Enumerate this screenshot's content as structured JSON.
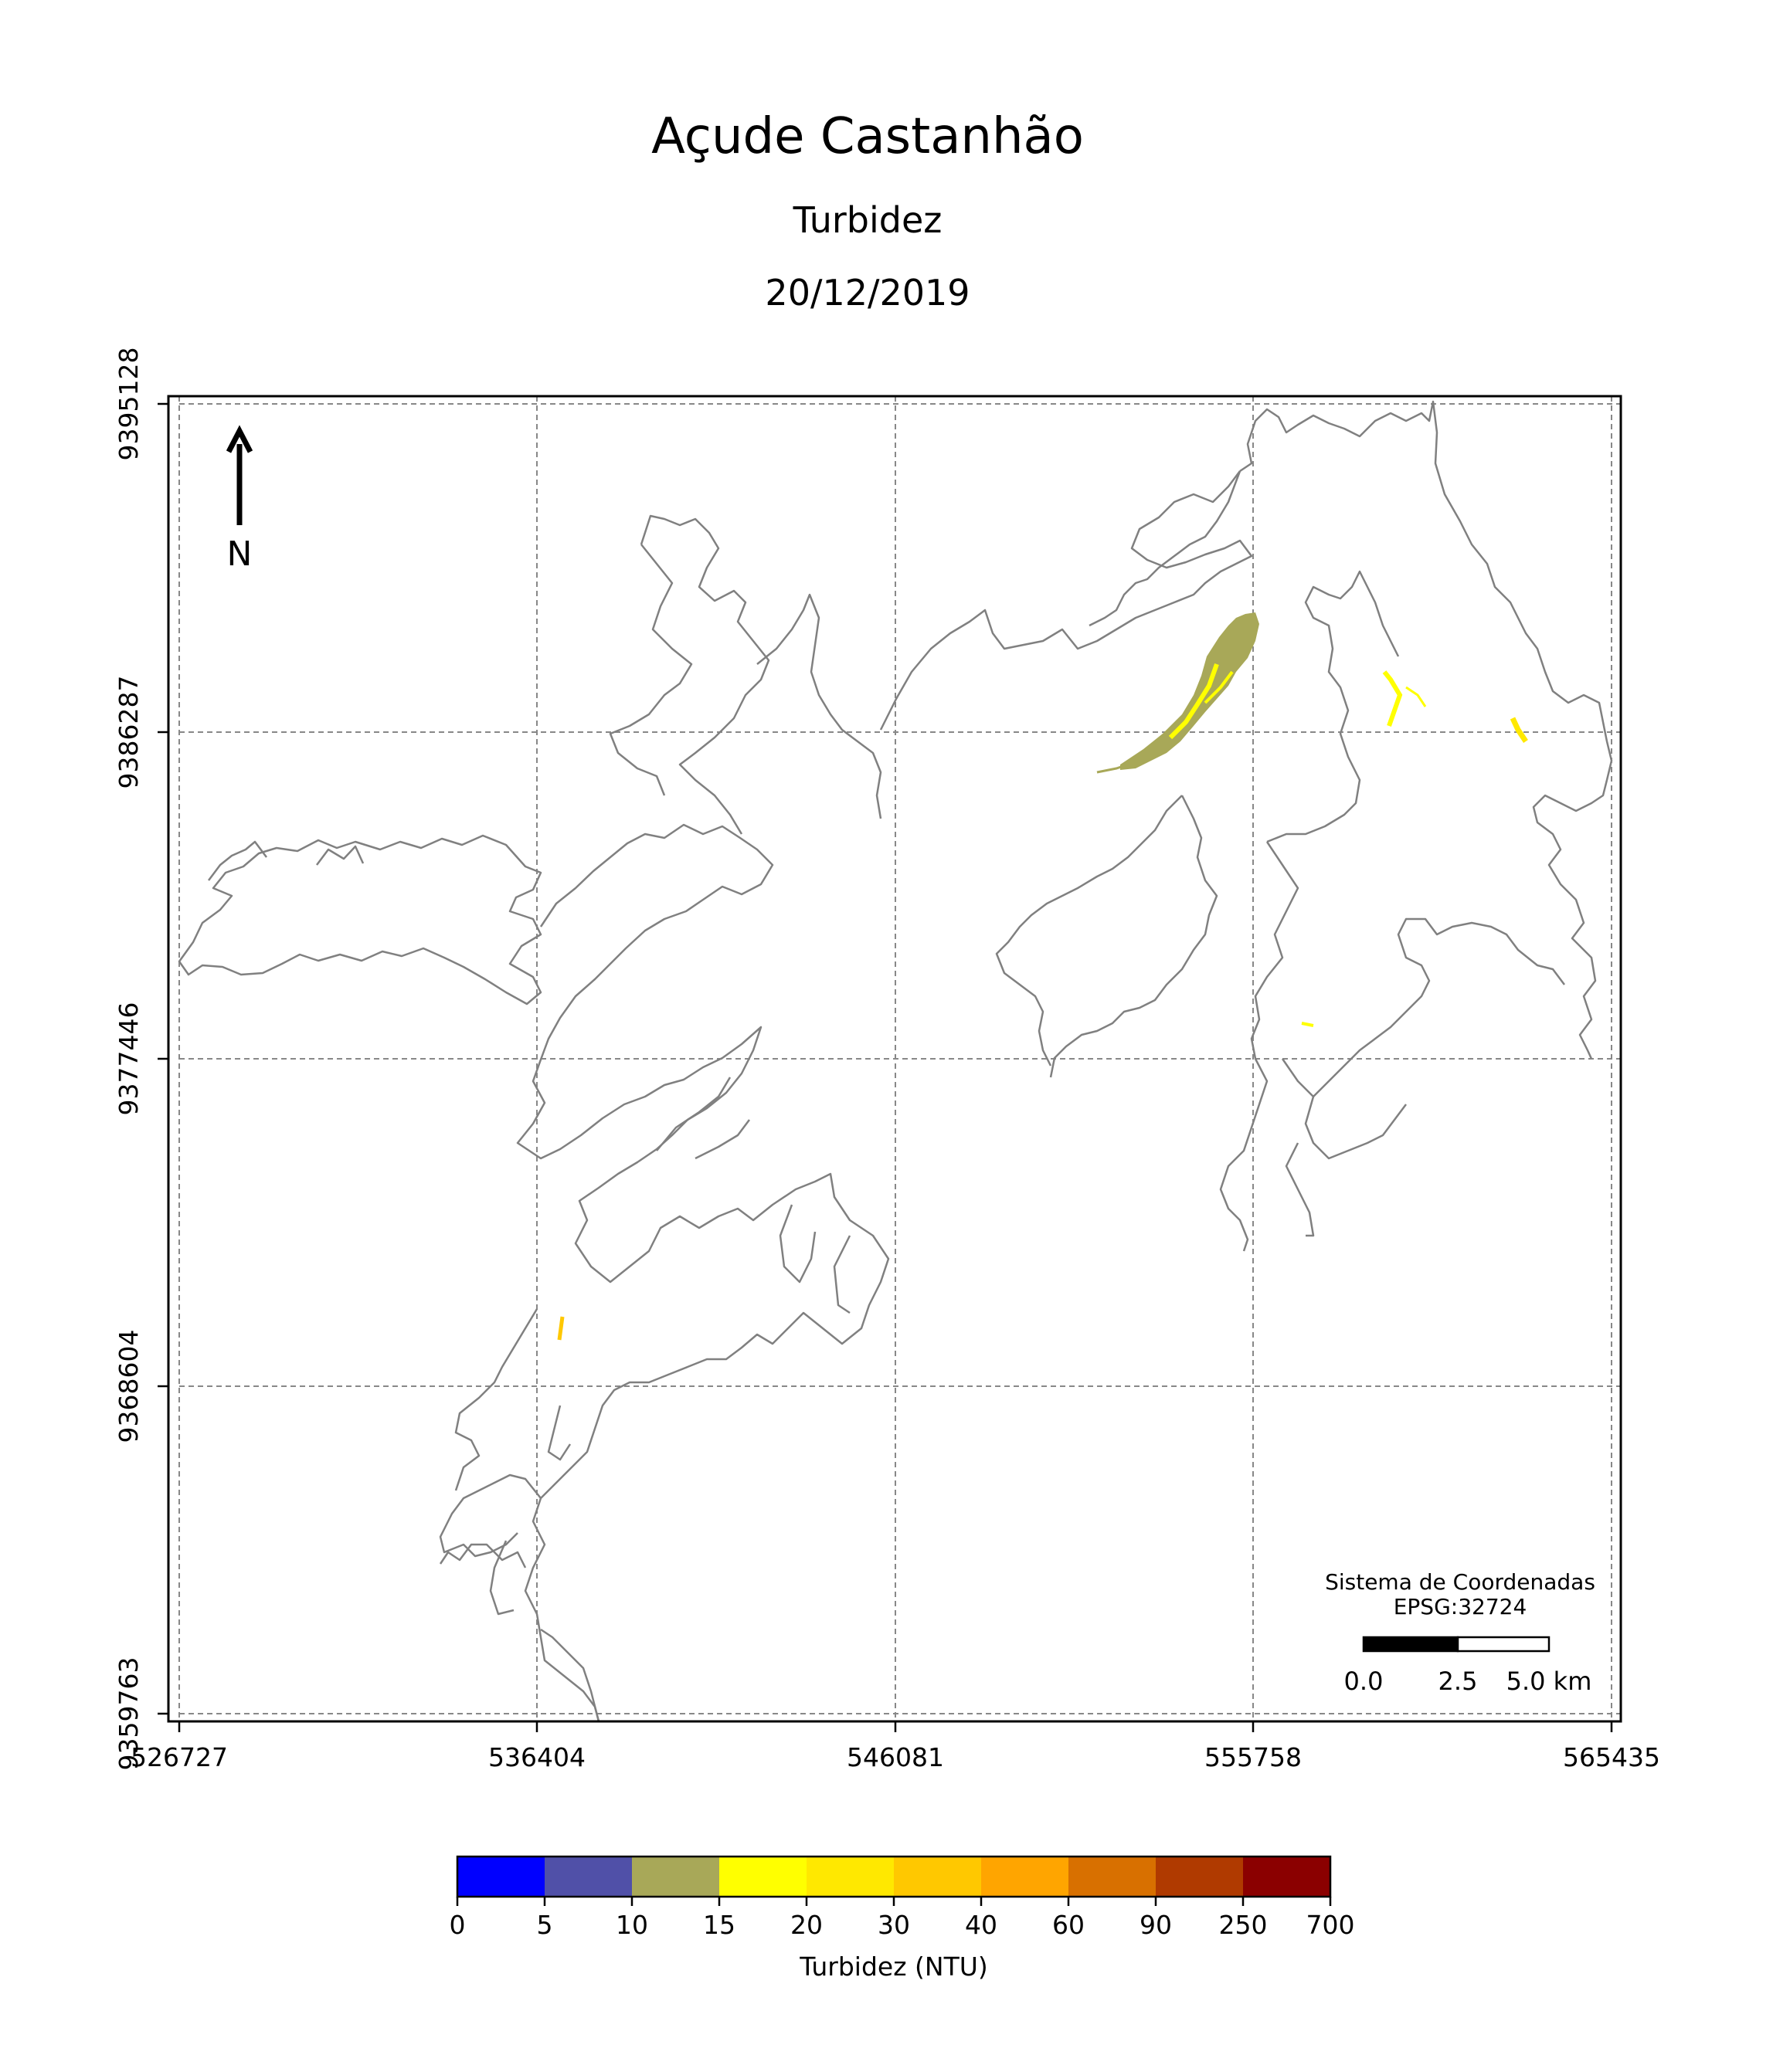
{
  "title": "Açude Castanhão",
  "subtitle": "Turbidez",
  "date": "20/12/2019",
  "x_ticks": [
    "526727",
    "536404",
    "546081",
    "555758",
    "565435"
  ],
  "y_ticks": [
    "9395128",
    "9386287",
    "9377446",
    "9368604",
    "9359763"
  ],
  "north_arrow": {
    "label": "N"
  },
  "crs": {
    "line1": "Sistema de Coordenadas",
    "line2": "EPSG:32724"
  },
  "scale_bar": {
    "labels": [
      "0.0",
      "2.5",
      "5.0 km"
    ]
  },
  "colorbar": {
    "label": "Turbidez (NTU)",
    "ticks": [
      "0",
      "5",
      "10",
      "15",
      "20",
      "30",
      "40",
      "60",
      "90",
      "250",
      "700"
    ],
    "colors": [
      "#0000ff",
      "#5050a8",
      "#a8a858",
      "#ffff00",
      "#ffe800",
      "#ffc800",
      "#ffa500",
      "#d87000",
      "#b03a00",
      "#8b0000"
    ]
  }
}
